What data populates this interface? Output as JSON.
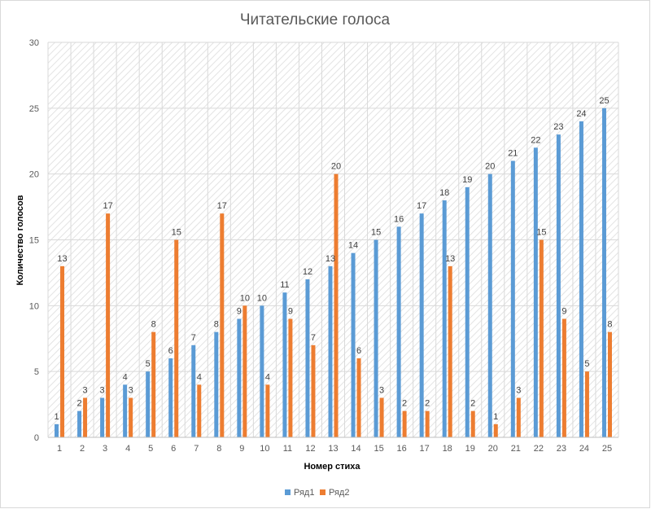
{
  "chart_data": {
    "type": "bar",
    "title": "Читательские голоса",
    "xlabel": "Номер стиха",
    "ylabel": "Количество голосов",
    "categories": [
      "1",
      "2",
      "3",
      "4",
      "5",
      "6",
      "7",
      "8",
      "9",
      "10",
      "11",
      "12",
      "13",
      "14",
      "15",
      "16",
      "17",
      "18",
      "19",
      "20",
      "21",
      "22",
      "23",
      "24",
      "25"
    ],
    "series": [
      {
        "name": "Ряд1",
        "color": "#5b9bd5",
        "values": [
          1,
          2,
          3,
          4,
          5,
          6,
          7,
          8,
          9,
          10,
          11,
          12,
          13,
          14,
          15,
          16,
          17,
          18,
          19,
          20,
          21,
          22,
          23,
          24,
          25
        ]
      },
      {
        "name": "Ряд2",
        "color": "#ed7d31",
        "values": [
          13,
          3,
          17,
          3,
          8,
          15,
          4,
          17,
          10,
          4,
          9,
          7,
          20,
          6,
          3,
          2,
          2,
          13,
          2,
          1,
          3,
          15,
          9,
          5,
          8
        ]
      }
    ],
    "ylim": [
      0,
      30
    ],
    "yticks": [
      0,
      5,
      10,
      15,
      20,
      25,
      30
    ],
    "grid": true,
    "data_labels": true,
    "legend_position": "bottom",
    "plot_background": "diagonal-hatch"
  }
}
